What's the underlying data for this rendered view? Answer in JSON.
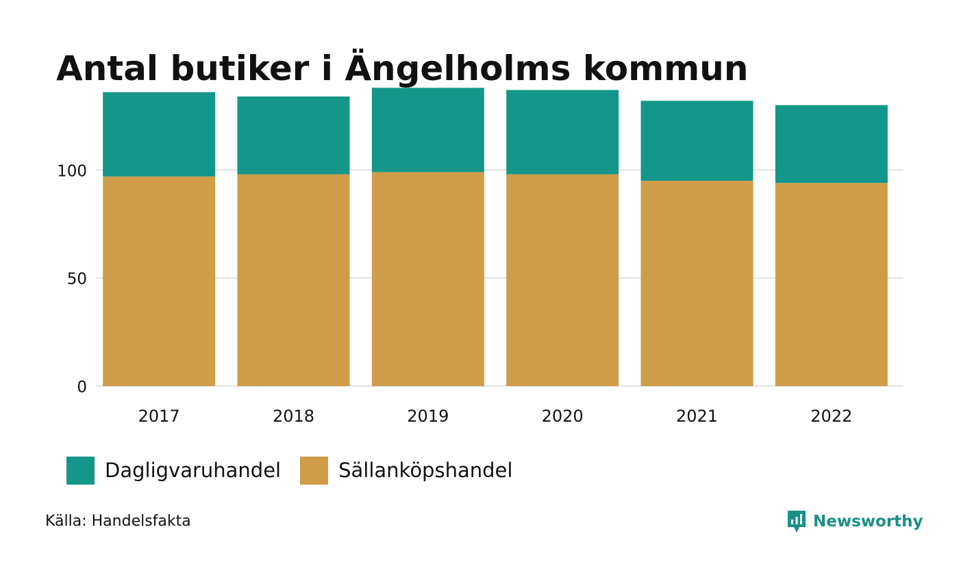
{
  "chart_data": {
    "type": "bar",
    "stacked": true,
    "title": "Antal butiker i Ängelholms kommun",
    "categories": [
      "2017",
      "2018",
      "2019",
      "2020",
      "2021",
      "2022"
    ],
    "series": [
      {
        "name": "Sällanköpshandel",
        "color": "#cf9d48",
        "values": [
          97,
          98,
          99,
          98,
          95,
          94
        ]
      },
      {
        "name": "Dagligvaruhandel",
        "color": "#14968a",
        "values": [
          39,
          36,
          39,
          39,
          37,
          36
        ]
      }
    ],
    "y_ticks": [
      0,
      50,
      100
    ],
    "ylim": [
      0,
      140
    ],
    "grid": true,
    "legend_position": "bottom-left"
  },
  "legend": {
    "items": [
      {
        "label": "Dagligvaruhandel",
        "color": "#14968a"
      },
      {
        "label": "Sällanköpshandel",
        "color": "#cf9d48"
      }
    ]
  },
  "footer": {
    "source": "Källa: Handelsfakta",
    "brand": "Newsworthy",
    "brand_icon": "newsworthy-logo-icon",
    "brand_color": "#1a8f85"
  }
}
